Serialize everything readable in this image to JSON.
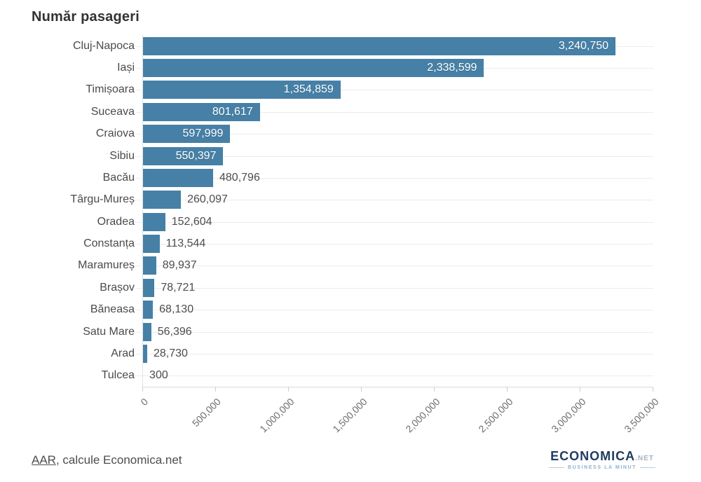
{
  "title": "Număr pasageri",
  "chart_data": {
    "type": "bar",
    "orientation": "horizontal",
    "title": "Număr pasageri",
    "categories": [
      "Cluj-Napoca",
      "Iași",
      "Timișoara",
      "Suceava",
      "Craiova",
      "Sibiu",
      "Bacău",
      "Târgu-Mureș",
      "Oradea",
      "Constanța",
      "Maramureș",
      "Brașov",
      "Băneasa",
      "Satu Mare",
      "Arad",
      "Tulcea"
    ],
    "values": [
      3240750,
      2338599,
      1354859,
      801617,
      597999,
      550397,
      480796,
      260097,
      152604,
      113544,
      89937,
      78721,
      68130,
      56396,
      28730,
      300
    ],
    "value_labels": [
      "3,240,750",
      "2,338,599",
      "1,354,859",
      "801,617",
      "597,999",
      "550,397",
      "480,796",
      "260,097",
      "152,604",
      "113,544",
      "89,937",
      "78,721",
      "68,130",
      "56,396",
      "28,730",
      "300"
    ],
    "label_positions": [
      "inside",
      "inside",
      "inside",
      "inside",
      "inside",
      "inside",
      "outside",
      "outside",
      "outside",
      "outside",
      "outside",
      "outside",
      "outside",
      "outside",
      "outside",
      "outside"
    ],
    "xlim": [
      0,
      3500000
    ],
    "x_ticks": [
      "0",
      "500,000",
      "1,000,000",
      "1,500,000",
      "2,000,000",
      "2,500,000",
      "3,000,000",
      "3,500,000"
    ],
    "x_tick_values": [
      0,
      500000,
      1000000,
      1500000,
      2000000,
      2500000,
      3000000,
      3500000
    ],
    "xlabel": "",
    "ylabel": "",
    "legend": "none",
    "grid": "horizontal-row-lines",
    "bar_color": "#4680a6"
  },
  "footer": {
    "source_link": "AAR",
    "source_rest": ", calcule Economica.net"
  },
  "logo": {
    "name": "ECONOMICA",
    "tld": ".NET",
    "tagline": "BUSINESS LA MINUT"
  }
}
